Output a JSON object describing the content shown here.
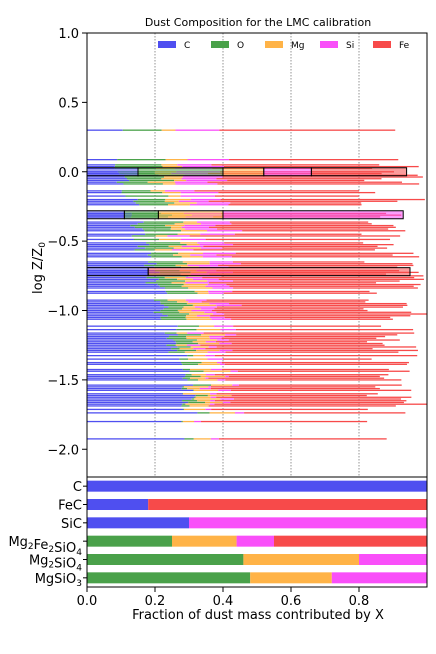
{
  "chart_data": [
    {
      "type": "bar",
      "orientation": "horizontal-stacked",
      "title": "Dust Composition for the LMC calibration",
      "ylabel": "log Z/Z",
      "ylabel_sub": "0",
      "xlim": [
        0,
        1
      ],
      "ylim": [
        -2.2,
        1.0
      ],
      "yticks": [
        {
          "v": 1.0,
          "label": "1.0"
        },
        {
          "v": 0.5,
          "label": "0.5"
        },
        {
          "v": 0.0,
          "label": "0.0"
        },
        {
          "v": -0.5,
          "label": "−0.5"
        },
        {
          "v": -1.0,
          "label": "−1.0"
        },
        {
          "v": -1.5,
          "label": "−1.5"
        },
        {
          "v": -2.0,
          "label": "−2.0"
        }
      ],
      "grid_x": [
        0.2,
        0.4,
        0.6,
        0.8
      ],
      "legend_position": "top",
      "series": [
        {
          "name": "C",
          "color": "#4f4ff0"
        },
        {
          "name": "O",
          "color": "#4aa14a"
        },
        {
          "name": "Mg",
          "color": "#ffb347"
        },
        {
          "name": "Si",
          "color": "#f94ff9"
        },
        {
          "name": "Fe",
          "color": "#f74a4a"
        }
      ],
      "highlighted_bars": [
        {
          "log_z": 0.0,
          "fractions": [
            0.15,
            0.25,
            0.12,
            0.14,
            0.28
          ]
        },
        {
          "log_z": -0.31,
          "fractions": [
            0.11,
            0.1,
            0.19,
            0.53,
            0.0
          ]
        },
        {
          "log_z": -0.72,
          "fractions": [
            0.18,
            0.0,
            0.0,
            0.0,
            0.77
          ]
        }
      ]
    },
    {
      "type": "bar",
      "orientation": "horizontal-stacked",
      "xlabel": "Fraction of dust mass contributed by X",
      "xlim": [
        0,
        1
      ],
      "xticks": [
        {
          "v": 0.0,
          "label": "0.0"
        },
        {
          "v": 0.2,
          "label": "0.2"
        },
        {
          "v": 0.4,
          "label": "0.4"
        },
        {
          "v": 0.6,
          "label": "0.6"
        },
        {
          "v": 0.8,
          "label": "0.8"
        }
      ],
      "species": [
        {
          "name": "C",
          "parts": [
            {
              "sub": ""
            }
          ],
          "fractions": [
            1.0,
            0,
            0,
            0,
            0
          ]
        },
        {
          "name": "FeC",
          "parts": [
            {
              "sub": ""
            }
          ],
          "fractions": [
            0.18,
            0,
            0,
            0,
            0.82
          ]
        },
        {
          "name": "SiC",
          "parts": [
            {
              "sub": ""
            }
          ],
          "fractions": [
            0.3,
            0,
            0,
            0.7,
            0
          ]
        },
        {
          "name": "Mg2Fe2SiO4",
          "fractions": [
            0,
            0.25,
            0.19,
            0.11,
            0.45
          ]
        },
        {
          "name": "Mg2SiO4",
          "fractions": [
            0,
            0.46,
            0.34,
            0.2,
            0
          ]
        },
        {
          "name": "MgSiO3",
          "fractions": [
            0,
            0.48,
            0.24,
            0.28,
            0
          ]
        }
      ]
    }
  ]
}
